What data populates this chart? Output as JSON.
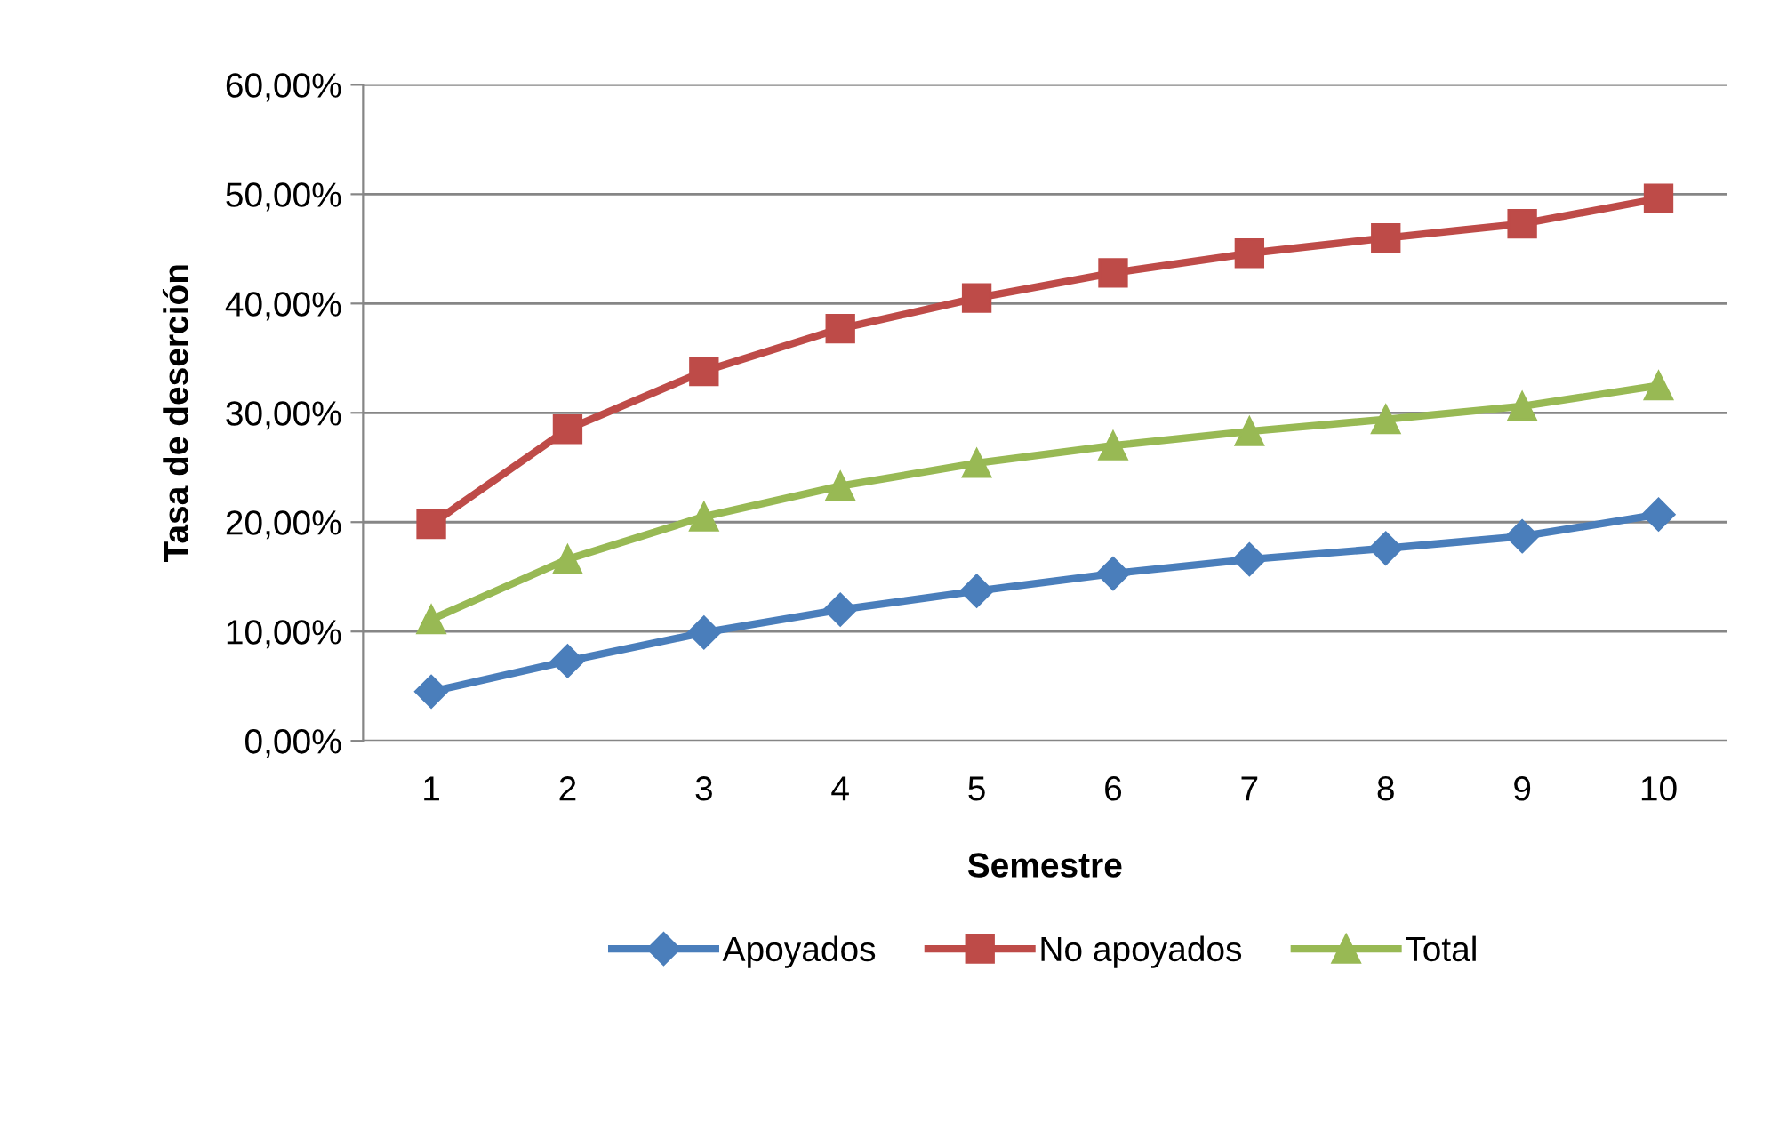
{
  "chart_data": {
    "type": "line",
    "xlabel": "Semestre",
    "ylabel": "Tasa de deserción",
    "categories": [
      "1",
      "2",
      "3",
      "4",
      "5",
      "6",
      "7",
      "8",
      "9",
      "10"
    ],
    "series": [
      {
        "name": "Apoyados",
        "color": "#4a7ebb",
        "marker": "diamond",
        "values": [
          4.5,
          7.3,
          9.9,
          12.0,
          13.7,
          15.3,
          16.6,
          17.6,
          18.7,
          20.7
        ]
      },
      {
        "name": "No apoyados",
        "color": "#be4b48",
        "marker": "square",
        "values": [
          19.8,
          28.5,
          33.8,
          37.7,
          40.5,
          42.8,
          44.6,
          46.0,
          47.3,
          49.6
        ]
      },
      {
        "name": "Total",
        "color": "#98b954",
        "marker": "triangle",
        "values": [
          11.1,
          16.6,
          20.5,
          23.3,
          25.4,
          27.0,
          28.3,
          29.4,
          30.6,
          32.5
        ]
      }
    ],
    "ylim": [
      0,
      60
    ],
    "yticks": [
      {
        "value": 0,
        "label": "0,00%"
      },
      {
        "value": 10,
        "label": "10,00%"
      },
      {
        "value": 20,
        "label": "20,00%"
      },
      {
        "value": 30,
        "label": "30,00%"
      },
      {
        "value": 40,
        "label": "40,00%"
      },
      {
        "value": 50,
        "label": "50,00%"
      },
      {
        "value": 60,
        "label": "60,00%"
      }
    ],
    "grid": "y",
    "legend": "bottom",
    "line_style": "solid"
  }
}
